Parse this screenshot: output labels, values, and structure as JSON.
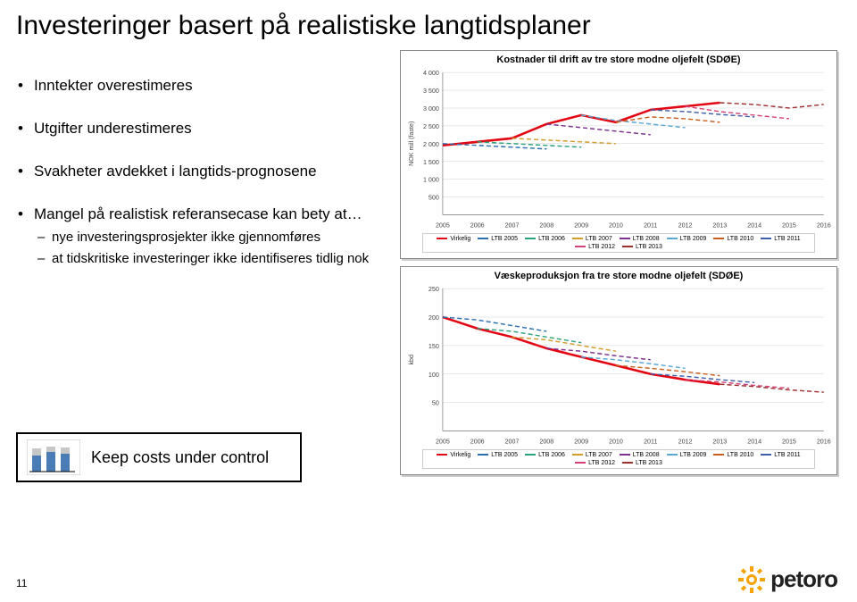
{
  "title": "Investeringer basert på realistiske langtidsplaner",
  "bullets": {
    "b1": "Inntekter overestimeres",
    "b2": "Utgifter underestimeres",
    "b3": "Svakheter avdekket i langtids-prognosene",
    "b4": "Mangel på realistisk referansecase kan bety at…",
    "s1": "nye investeringsprosjekter ikke gjennomføres",
    "s2": "at tidskritiske investeringer ikke identifiseres tidlig nok"
  },
  "chart1": {
    "title": "Kostnader til drift av tre store modne oljefelt (SDØE)",
    "ylabel": "NOK mill (faste)",
    "ymin": 0,
    "ymax": 4000,
    "yticks": [
      500,
      1000,
      1500,
      2000,
      2500,
      3000,
      3500,
      4000
    ],
    "xmin": 2005,
    "xmax": 2016,
    "xticks": [
      2005,
      2006,
      2007,
      2008,
      2009,
      2010,
      2011,
      2012,
      2013,
      2014,
      2015,
      2016
    ],
    "series": [
      {
        "name": "Virkelig",
        "color": "#e30613",
        "width": 2.5,
        "dash": "",
        "data": [
          [
            2005,
            1950
          ],
          [
            2006,
            2050
          ],
          [
            2007,
            2150
          ],
          [
            2008,
            2550
          ],
          [
            2009,
            2800
          ],
          [
            2010,
            2600
          ],
          [
            2011,
            2950
          ],
          [
            2012,
            3050
          ],
          [
            2013,
            3150
          ]
        ]
      },
      {
        "name": "LTB 2005",
        "color": "#2a6fb0",
        "width": 1.4,
        "dash": "5,3",
        "data": [
          [
            2005,
            2000
          ],
          [
            2006,
            1950
          ],
          [
            2007,
            1900
          ],
          [
            2008,
            1850
          ]
        ]
      },
      {
        "name": "LTB 2006",
        "color": "#2aa37a",
        "width": 1.4,
        "dash": "5,3",
        "data": [
          [
            2006,
            2050
          ],
          [
            2007,
            2000
          ],
          [
            2008,
            1950
          ],
          [
            2009,
            1900
          ]
        ]
      },
      {
        "name": "LTB 2007",
        "color": "#d39a2c",
        "width": 1.4,
        "dash": "5,3",
        "data": [
          [
            2007,
            2150
          ],
          [
            2008,
            2100
          ],
          [
            2009,
            2050
          ],
          [
            2010,
            2000
          ]
        ]
      },
      {
        "name": "LTB 2008",
        "color": "#7d2f8f",
        "width": 1.4,
        "dash": "5,3",
        "data": [
          [
            2008,
            2550
          ],
          [
            2009,
            2450
          ],
          [
            2010,
            2350
          ],
          [
            2011,
            2250
          ]
        ]
      },
      {
        "name": "LTB 2009",
        "color": "#5aa7d6",
        "width": 1.4,
        "dash": "5,3",
        "data": [
          [
            2009,
            2800
          ],
          [
            2010,
            2650
          ],
          [
            2011,
            2550
          ],
          [
            2012,
            2450
          ]
        ]
      },
      {
        "name": "LTB 2010",
        "color": "#c85f1e",
        "width": 1.4,
        "dash": "5,3",
        "data": [
          [
            2010,
            2600
          ],
          [
            2011,
            2750
          ],
          [
            2012,
            2700
          ],
          [
            2013,
            2600
          ]
        ]
      },
      {
        "name": "LTB 2011",
        "color": "#3f5fa8",
        "width": 1.4,
        "dash": "5,3",
        "data": [
          [
            2011,
            2950
          ],
          [
            2012,
            2900
          ],
          [
            2013,
            2820
          ],
          [
            2014,
            2750
          ]
        ]
      },
      {
        "name": "LTB 2012",
        "color": "#d4427a",
        "width": 1.4,
        "dash": "5,3",
        "data": [
          [
            2012,
            3050
          ],
          [
            2013,
            2900
          ],
          [
            2014,
            2800
          ],
          [
            2015,
            2700
          ]
        ]
      },
      {
        "name": "LTB 2013",
        "color": "#9e2f2f",
        "width": 1.4,
        "dash": "5,3",
        "data": [
          [
            2013,
            3150
          ],
          [
            2014,
            3100
          ],
          [
            2015,
            3000
          ],
          [
            2016,
            3100
          ]
        ]
      }
    ]
  },
  "chart2": {
    "title": "Væskeproduksjon fra tre store modne oljefelt (SDØE)",
    "ylabel": "kbd",
    "ymin": 0,
    "ymax": 250,
    "yticks": [
      50,
      100,
      150,
      200,
      250
    ],
    "xmin": 2005,
    "xmax": 2016,
    "xticks": [
      2005,
      2006,
      2007,
      2008,
      2009,
      2010,
      2011,
      2012,
      2013,
      2014,
      2015,
      2016
    ],
    "series": [
      {
        "name": "Virkelig",
        "color": "#e30613",
        "width": 2.5,
        "dash": "",
        "data": [
          [
            2005,
            200
          ],
          [
            2006,
            180
          ],
          [
            2007,
            165
          ],
          [
            2008,
            145
          ],
          [
            2009,
            130
          ],
          [
            2010,
            115
          ],
          [
            2011,
            100
          ],
          [
            2012,
            90
          ],
          [
            2013,
            82
          ]
        ]
      },
      {
        "name": "LTB 2005",
        "color": "#2a6fb0",
        "width": 1.4,
        "dash": "5,3",
        "data": [
          [
            2005,
            200
          ],
          [
            2006,
            195
          ],
          [
            2007,
            185
          ],
          [
            2008,
            175
          ]
        ]
      },
      {
        "name": "LTB 2006",
        "color": "#2aa37a",
        "width": 1.4,
        "dash": "5,3",
        "data": [
          [
            2006,
            180
          ],
          [
            2007,
            175
          ],
          [
            2008,
            165
          ],
          [
            2009,
            155
          ]
        ]
      },
      {
        "name": "LTB 2007",
        "color": "#d39a2c",
        "width": 1.4,
        "dash": "5,3",
        "data": [
          [
            2007,
            165
          ],
          [
            2008,
            160
          ],
          [
            2009,
            150
          ],
          [
            2010,
            140
          ]
        ]
      },
      {
        "name": "LTB 2008",
        "color": "#7d2f8f",
        "width": 1.4,
        "dash": "5,3",
        "data": [
          [
            2008,
            145
          ],
          [
            2009,
            140
          ],
          [
            2010,
            132
          ],
          [
            2011,
            125
          ]
        ]
      },
      {
        "name": "LTB 2009",
        "color": "#5aa7d6",
        "width": 1.4,
        "dash": "5,3",
        "data": [
          [
            2009,
            130
          ],
          [
            2010,
            125
          ],
          [
            2011,
            118
          ],
          [
            2012,
            110
          ]
        ]
      },
      {
        "name": "LTB 2010",
        "color": "#c85f1e",
        "width": 1.4,
        "dash": "5,3",
        "data": [
          [
            2010,
            115
          ],
          [
            2011,
            110
          ],
          [
            2012,
            104
          ],
          [
            2013,
            97
          ]
        ]
      },
      {
        "name": "LTB 2011",
        "color": "#3f5fa8",
        "width": 1.4,
        "dash": "5,3",
        "data": [
          [
            2011,
            100
          ],
          [
            2012,
            96
          ],
          [
            2013,
            90
          ],
          [
            2014,
            85
          ]
        ]
      },
      {
        "name": "LTB 2012",
        "color": "#d4427a",
        "width": 1.4,
        "dash": "5,3",
        "data": [
          [
            2012,
            90
          ],
          [
            2013,
            86
          ],
          [
            2014,
            80
          ],
          [
            2015,
            75
          ]
        ]
      },
      {
        "name": "LTB 2013",
        "color": "#9e2f2f",
        "width": 1.4,
        "dash": "5,3",
        "data": [
          [
            2013,
            82
          ],
          [
            2014,
            78
          ],
          [
            2015,
            72
          ],
          [
            2016,
            68
          ]
        ]
      }
    ]
  },
  "costs_box": "Keep costs under control",
  "page_num": "11",
  "logo_text": "petoro",
  "colors": {
    "bar_blue": "#4a7cb5",
    "bar_gray": "#c7c7c7",
    "gear": "#f4a300"
  }
}
